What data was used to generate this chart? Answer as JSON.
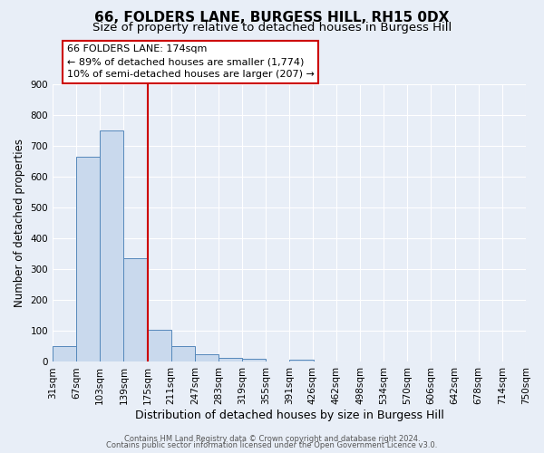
{
  "title": "66, FOLDERS LANE, BURGESS HILL, RH15 0DX",
  "subtitle": "Size of property relative to detached houses in Burgess Hill",
  "xlabel": "Distribution of detached houses by size in Burgess Hill",
  "ylabel": "Number of detached properties",
  "bins": [
    31,
    67,
    103,
    139,
    175,
    211,
    247,
    283,
    319,
    355,
    391,
    426,
    462,
    498,
    534,
    570,
    606,
    642,
    678,
    714,
    750
  ],
  "bin_labels": [
    "31sqm",
    "67sqm",
    "103sqm",
    "139sqm",
    "175sqm",
    "211sqm",
    "247sqm",
    "283sqm",
    "319sqm",
    "355sqm",
    "391sqm",
    "426sqm",
    "462sqm",
    "498sqm",
    "534sqm",
    "570sqm",
    "606sqm",
    "642sqm",
    "678sqm",
    "714sqm",
    "750sqm"
  ],
  "counts": [
    50,
    665,
    750,
    335,
    105,
    50,
    25,
    12,
    10,
    0,
    8,
    0,
    0,
    0,
    0,
    0,
    0,
    0,
    0,
    0
  ],
  "bar_color": "#c9d9ed",
  "bar_edge_color": "#5588bb",
  "vline_x": 175,
  "vline_color": "#cc0000",
  "annotation_line1": "66 FOLDERS LANE: 174sqm",
  "annotation_line2": "← 89% of detached houses are smaller (1,774)",
  "annotation_line3": "10% of semi-detached houses are larger (207) →",
  "annotation_box_facecolor": "white",
  "annotation_box_edgecolor": "#cc0000",
  "ylim": [
    0,
    900
  ],
  "yticks": [
    0,
    100,
    200,
    300,
    400,
    500,
    600,
    700,
    800,
    900
  ],
  "bg_color": "#e8eef7",
  "footer_line1": "Contains HM Land Registry data © Crown copyright and database right 2024.",
  "footer_line2": "Contains public sector information licensed under the Open Government Licence v3.0.",
  "title_fontsize": 11,
  "subtitle_fontsize": 9.5,
  "xlabel_fontsize": 9,
  "ylabel_fontsize": 8.5,
  "tick_label_fontsize": 7.5,
  "annotation_fontsize": 8,
  "footer_fontsize": 6
}
